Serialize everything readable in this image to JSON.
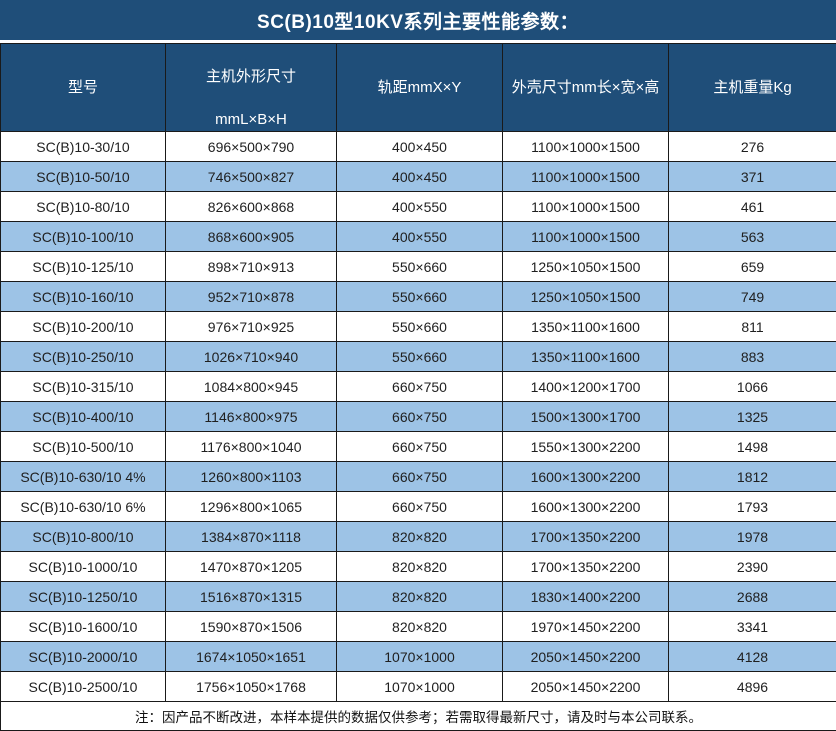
{
  "title": "SC(B)10型10KV系列主要性能参数：",
  "colors": {
    "header_bg": "#1F4E79",
    "row_alt_bg": "#9DC3E6",
    "border": "#1a1a1a",
    "header_text": "#ffffff",
    "body_text": "#1f1f1f"
  },
  "table": {
    "headers": {
      "model": "型号",
      "main_dims_line1": "主机外形尺寸",
      "main_dims_line2": "mmL×B×H",
      "track_gauge": "轨距mmX×Y",
      "shell_dims": "外壳尺寸mm长×宽×高",
      "weight": "主机重量Kg"
    },
    "rows": [
      [
        "SC(B)10-30/10",
        "696×500×790",
        "400×450",
        "1100×1000×1500",
        "276"
      ],
      [
        "SC(B)10-50/10",
        "746×500×827",
        "400×450",
        "1100×1000×1500",
        "371"
      ],
      [
        "SC(B)10-80/10",
        "826×600×868",
        "400×550",
        "1100×1000×1500",
        "461"
      ],
      [
        "SC(B)10-100/10",
        "868×600×905",
        "400×550",
        "1100×1000×1500",
        "563"
      ],
      [
        "SC(B)10-125/10",
        "898×710×913",
        "550×660",
        "1250×1050×1500",
        "659"
      ],
      [
        "SC(B)10-160/10",
        "952×710×878",
        "550×660",
        "1250×1050×1500",
        "749"
      ],
      [
        "SC(B)10-200/10",
        "976×710×925",
        "550×660",
        "1350×1100×1600",
        "811"
      ],
      [
        "SC(B)10-250/10",
        "1026×710×940",
        "550×660",
        "1350×1100×1600",
        "883"
      ],
      [
        "SC(B)10-315/10",
        "1084×800×945",
        "660×750",
        "1400×1200×1700",
        "1066"
      ],
      [
        "SC(B)10-400/10",
        "1146×800×975",
        "660×750",
        "1500×1300×1700",
        "1325"
      ],
      [
        "SC(B)10-500/10",
        "1176×800×1040",
        "660×750",
        "1550×1300×2200",
        "1498"
      ],
      [
        "SC(B)10-630/10 4%",
        "1260×800×1103",
        "660×750",
        "1600×1300×2200",
        "1812"
      ],
      [
        "SC(B)10-630/10 6%",
        "1296×800×1065",
        "660×750",
        "1600×1300×2200",
        "1793"
      ],
      [
        "SC(B)10-800/10",
        "1384×870×1118",
        "820×820",
        "1700×1350×2200",
        "1978"
      ],
      [
        "SC(B)10-1000/10",
        "1470×870×1205",
        "820×820",
        "1700×1350×2200",
        "2390"
      ],
      [
        "SC(B)10-1250/10",
        "1516×870×1315",
        "820×820",
        "1830×1400×2200",
        "2688"
      ],
      [
        "SC(B)10-1600/10",
        "1590×870×1506",
        "820×820",
        "1970×1450×2200",
        "3341"
      ],
      [
        "SC(B)10-2000/10",
        "1674×1050×1651",
        "1070×1000",
        "2050×1450×2200",
        "4128"
      ],
      [
        "SC(B)10-2500/10",
        "1756×1050×1768",
        "1070×1000",
        "2050×1450×2200",
        "4896"
      ]
    ]
  },
  "footer_note": "注：因产品不断改进，本样本提供的数据仅供参考；若需取得最新尺寸，请及时与本公司联系。"
}
